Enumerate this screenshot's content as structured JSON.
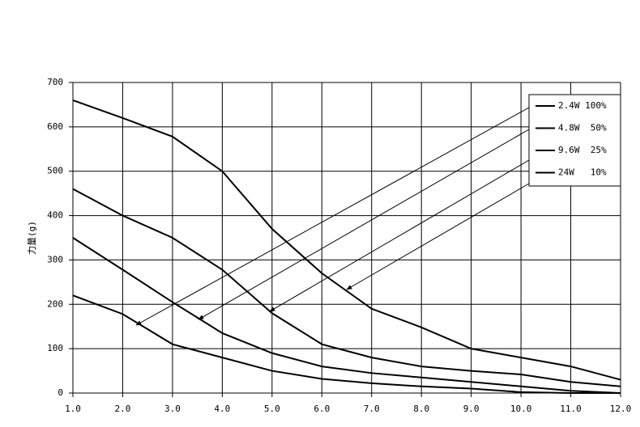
{
  "chart_data": {
    "type": "line",
    "y_label": "力量(g)",
    "x": [
      1,
      2,
      3,
      4,
      5,
      6,
      7,
      8,
      9,
      10,
      11,
      12
    ],
    "series": [
      {
        "name": "2.4W 100%",
        "color": "#000000",
        "values": [
          220,
          178,
          110,
          80,
          50,
          32,
          22,
          15,
          10,
          2,
          0,
          0
        ]
      },
      {
        "name": "4.8W  50%",
        "color": "#000000",
        "values": [
          350,
          278,
          205,
          135,
          90,
          60,
          45,
          35,
          25,
          15,
          5,
          0
        ]
      },
      {
        "name": "9.6W  25%",
        "color": "#000000",
        "values": [
          460,
          400,
          350,
          278,
          180,
          110,
          80,
          60,
          50,
          42,
          25,
          15
        ]
      },
      {
        "name": "24W   10%",
        "color": "#000000",
        "values": [
          660,
          620,
          578,
          500,
          370,
          270,
          190,
          148,
          100,
          80,
          60,
          30
        ]
      }
    ],
    "xlim": [
      1,
      12
    ],
    "xticks": [
      {
        "value": 1,
        "label": "1.0"
      },
      {
        "value": 2,
        "label": "2.0"
      },
      {
        "value": 3,
        "label": "3.0"
      },
      {
        "value": 4,
        "label": "4.0"
      },
      {
        "value": 5,
        "label": "5.0"
      },
      {
        "value": 6,
        "label": "6.0"
      },
      {
        "value": 7,
        "label": "7.0"
      },
      {
        "value": 8,
        "label": "8.0"
      },
      {
        "value": 9,
        "label": "9.0"
      },
      {
        "value": 10,
        "label": "10.0"
      },
      {
        "value": 11,
        "label": "11.0"
      },
      {
        "value": 12,
        "label": "12.0"
      }
    ],
    "ylim": [
      0,
      700
    ],
    "yticks": [
      0,
      100,
      200,
      300,
      400,
      500,
      600,
      700
    ],
    "grid": true
  }
}
